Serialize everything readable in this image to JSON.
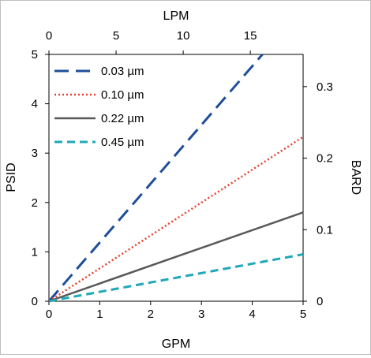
{
  "chart_data": {
    "type": "line",
    "x_axis": {
      "label": "GPM",
      "range": [
        0,
        5
      ],
      "ticks": [
        "0",
        "1",
        "2",
        "3",
        "4",
        "5"
      ]
    },
    "x2_axis": {
      "label": "LPM",
      "range": [
        0,
        18.93
      ],
      "ticks": [
        "0",
        "5",
        "10",
        "15"
      ],
      "tick_values": [
        0,
        5,
        10,
        15
      ]
    },
    "y_axis": {
      "label": "PSID",
      "range": [
        0,
        5
      ],
      "ticks": [
        "0",
        "1",
        "2",
        "3",
        "4",
        "5"
      ]
    },
    "y2_axis": {
      "label": "BARD",
      "range": [
        0,
        0.345
      ],
      "ticks": [
        "0",
        "0.1",
        "0.2",
        "0.3"
      ],
      "tick_values": [
        0,
        0.1,
        0.2,
        0.3
      ]
    },
    "grid": false,
    "legend_position": "top-left",
    "series": [
      {
        "name": "0.03 µm",
        "x": [
          0,
          4.2
        ],
        "y": [
          0,
          5.0
        ],
        "color": "#1f4e99",
        "style": "long-dash"
      },
      {
        "name": "0.10 µm",
        "x": [
          0,
          5
        ],
        "y": [
          0,
          3.33
        ],
        "color": "#e8412c",
        "style": "dotted"
      },
      {
        "name": "0.22 µm",
        "x": [
          0,
          5
        ],
        "y": [
          0,
          1.8
        ],
        "color": "#595959",
        "style": "solid"
      },
      {
        "name": "0.45 µm",
        "x": [
          0,
          5
        ],
        "y": [
          0,
          0.95
        ],
        "color": "#20a8b8",
        "style": "short-dash"
      }
    ]
  }
}
